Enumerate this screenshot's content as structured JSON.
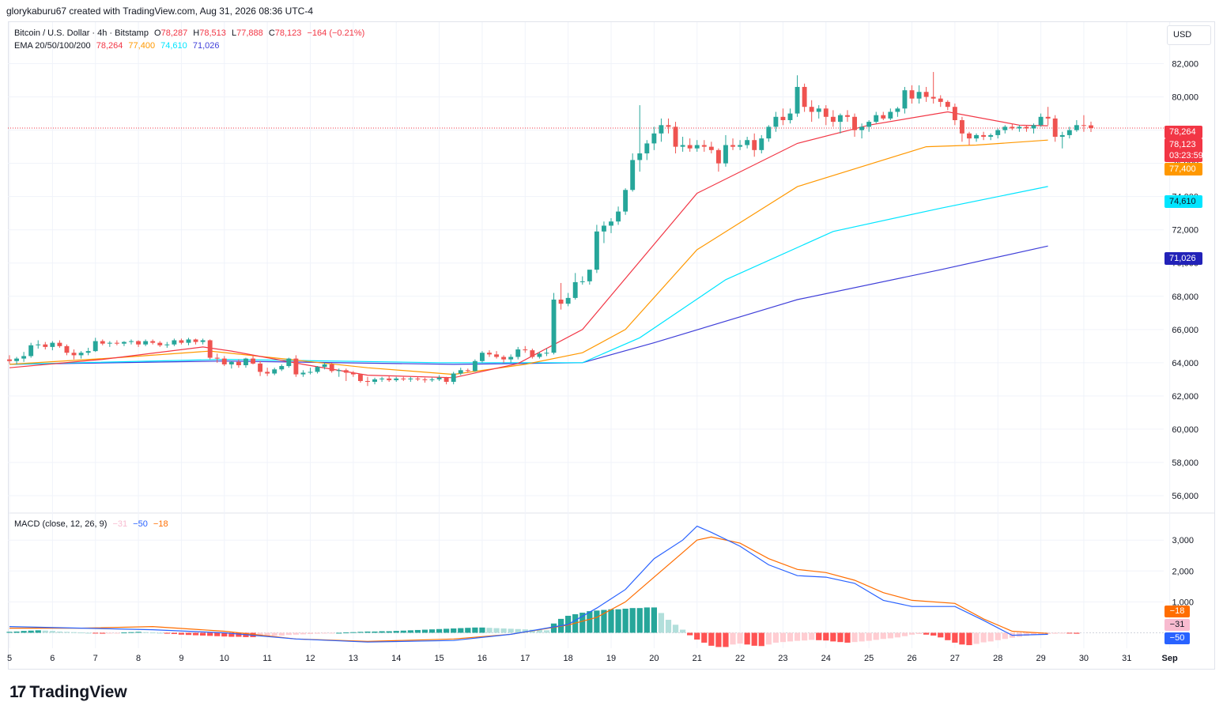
{
  "header": {
    "text": "glorykaburu67 created with TradingView.com, Aug 31, 2026 08:36 UTC-4"
  },
  "legend": {
    "symbol": "Bitcoin / U.S. Dollar · 4h · Bitstamp",
    "o_label": "O",
    "o": "78,287",
    "h_label": "H",
    "h": "78,513",
    "l_label": "L",
    "l": "77,888",
    "c_label": "C",
    "c": "78,123",
    "change": "−164 (−0.21%)",
    "ema_label": "EMA 20/50/100/200",
    "ema20": "78,264",
    "ema50": "77,400",
    "ema100": "74,610",
    "ema200": "71,026"
  },
  "macd_legend": {
    "label": "MACD (close, 12, 26, 9)",
    "hist": "−31",
    "macd": "−50",
    "signal": "−18"
  },
  "currency": "USD",
  "price_tags": {
    "ema20": "78,264",
    "last": "78,123",
    "countdown": "03:23:59",
    "ema50": "77,400",
    "ema100": "74,610",
    "ema200": "71,026"
  },
  "macd_tags": {
    "signal": "−18",
    "hist": "−31",
    "macd": "−50"
  },
  "logo": "TradingView",
  "colors": {
    "up": "#26a69a",
    "down": "#ef5350",
    "ema20": "#f23645",
    "ema50": "#ff9800",
    "ema100": "#00e5ff",
    "ema200": "#3f3fd9",
    "macd": "#2962ff",
    "signal": "#ff6d00"
  },
  "chart_data": {
    "type": "candlestick",
    "timeframe": "4h",
    "x_ticks": [
      "5",
      "6",
      "7",
      "8",
      "9",
      "10",
      "11",
      "12",
      "13",
      "14",
      "15",
      "16",
      "17",
      "18",
      "19",
      "20",
      "21",
      "22",
      "23",
      "24",
      "25",
      "26",
      "27",
      "28",
      "29",
      "30",
      "31",
      "Sep"
    ],
    "y_ticks": [
      "82,000",
      "80,000",
      "78,000",
      "76,000",
      "74,000",
      "72,000",
      "70,000",
      "68,000",
      "66,000",
      "64,000",
      "62,000",
      "60,000",
      "58,000",
      "56,000"
    ],
    "ylim": [
      55000,
      84500
    ],
    "ohlc": [
      [
        64200,
        64450,
        63950,
        64100
      ],
      [
        64100,
        64350,
        63900,
        64250
      ],
      [
        64250,
        64650,
        64050,
        64400
      ],
      [
        64400,
        65200,
        64300,
        65050
      ],
      [
        65050,
        65350,
        64850,
        65100
      ],
      [
        65100,
        65250,
        64800,
        64950
      ],
      [
        64950,
        65300,
        64750,
        65200
      ],
      [
        65200,
        65350,
        64900,
        65000
      ],
      [
        65000,
        65100,
        64450,
        64600
      ],
      [
        64600,
        64800,
        64200,
        64450
      ],
      [
        64450,
        64700,
        64250,
        64600
      ],
      [
        64600,
        64900,
        64450,
        64700
      ],
      [
        64700,
        65500,
        64650,
        65300
      ],
      [
        65300,
        65400,
        65050,
        65150
      ],
      [
        65150,
        65300,
        64950,
        65200
      ],
      [
        65200,
        65350,
        65050,
        65150
      ],
      [
        65150,
        65300,
        65000,
        65250
      ],
      [
        65250,
        65400,
        65100,
        65300
      ],
      [
        65300,
        65350,
        64950,
        65100
      ],
      [
        65100,
        65400,
        65000,
        65300
      ],
      [
        65300,
        65400,
        65100,
        65200
      ],
      [
        65200,
        65300,
        64950,
        65050
      ],
      [
        65050,
        65250,
        64900,
        65100
      ],
      [
        65100,
        65450,
        65000,
        65350
      ],
      [
        65350,
        65450,
        65100,
        65200
      ],
      [
        65200,
        65500,
        65050,
        65400
      ],
      [
        65400,
        65450,
        65100,
        65250
      ],
      [
        65250,
        65450,
        65100,
        65350
      ],
      [
        65350,
        65400,
        64200,
        64300
      ],
      [
        64300,
        64550,
        64000,
        64250
      ],
      [
        64250,
        64400,
        63800,
        63900
      ],
      [
        63900,
        64100,
        63650,
        64050
      ],
      [
        64050,
        64200,
        63700,
        63850
      ],
      [
        63850,
        64300,
        63700,
        64250
      ],
      [
        64250,
        64400,
        63900,
        63950
      ],
      [
        63950,
        64100,
        63200,
        63450
      ],
      [
        63450,
        63700,
        63200,
        63350
      ],
      [
        63350,
        63700,
        63250,
        63600
      ],
      [
        63600,
        63900,
        63500,
        63800
      ],
      [
        63800,
        64300,
        63700,
        64250
      ],
      [
        64250,
        64450,
        63150,
        63300
      ],
      [
        63300,
        63550,
        63150,
        63400
      ],
      [
        63400,
        63700,
        63300,
        63450
      ],
      [
        63450,
        63800,
        63350,
        63750
      ],
      [
        63750,
        64000,
        63600,
        63900
      ],
      [
        63900,
        64000,
        63400,
        63500
      ],
      [
        63500,
        63650,
        63150,
        63550
      ],
      [
        63550,
        63650,
        62900,
        63400
      ],
      [
        63400,
        63500,
        63150,
        63300
      ],
      [
        63300,
        63350,
        62800,
        62900
      ],
      [
        62900,
        63150,
        62600,
        62850
      ],
      [
        62850,
        63100,
        62700,
        63000
      ],
      [
        63000,
        63150,
        62850,
        63050
      ],
      [
        63050,
        63200,
        62850,
        62950
      ],
      [
        62950,
        63150,
        62850,
        63050
      ],
      [
        63050,
        63150,
        62900,
        63000
      ],
      [
        63000,
        63150,
        62850,
        63050
      ],
      [
        63050,
        63150,
        62900,
        63000
      ],
      [
        63000,
        63100,
        62800,
        62950
      ],
      [
        62950,
        63100,
        62850,
        63000
      ],
      [
        63000,
        63250,
        62900,
        63100
      ],
      [
        63100,
        63150,
        62700,
        62850
      ],
      [
        62850,
        63450,
        62700,
        63350
      ],
      [
        63350,
        63700,
        63250,
        63550
      ],
      [
        63550,
        63650,
        63400,
        63500
      ],
      [
        63500,
        64200,
        63450,
        64100
      ],
      [
        64100,
        64700,
        64000,
        64600
      ],
      [
        64600,
        64750,
        64350,
        64500
      ],
      [
        64500,
        64700,
        64250,
        64350
      ],
      [
        64350,
        64450,
        64000,
        64200
      ],
      [
        64200,
        64500,
        64000,
        64350
      ],
      [
        64350,
        64950,
        64200,
        64800
      ],
      [
        64800,
        65000,
        64600,
        64750
      ],
      [
        64750,
        64850,
        64250,
        64350
      ],
      [
        64350,
        64650,
        64250,
        64550
      ],
      [
        64550,
        64850,
        64400,
        64600
      ],
      [
        64600,
        68200,
        64500,
        67800
      ],
      [
        67800,
        68800,
        67200,
        67550
      ],
      [
        67550,
        68200,
        67400,
        67900
      ],
      [
        67900,
        69400,
        67800,
        68850
      ],
      [
        68850,
        69200,
        68700,
        68900
      ],
      [
        68900,
        69500,
        68700,
        69600
      ],
      [
        69600,
        72300,
        69400,
        71900
      ],
      [
        71900,
        72500,
        71200,
        72250
      ],
      [
        72250,
        72700,
        71800,
        72500
      ],
      [
        72500,
        73400,
        72300,
        73100
      ],
      [
        73100,
        74500,
        72900,
        74400
      ],
      [
        74400,
        76600,
        74300,
        76200
      ],
      [
        76200,
        79500,
        75500,
        76600
      ],
      [
        76600,
        77400,
        76200,
        77200
      ],
      [
        77200,
        78200,
        76800,
        77800
      ],
      [
        77800,
        78700,
        77300,
        78300
      ],
      [
        78300,
        78700,
        77800,
        78200
      ],
      [
        78200,
        78500,
        76600,
        77000
      ],
      [
        77000,
        77600,
        76700,
        77100
      ],
      [
        77100,
        77500,
        76700,
        76900
      ],
      [
        76900,
        77400,
        76700,
        77100
      ],
      [
        77100,
        77400,
        76700,
        77000
      ],
      [
        77000,
        77300,
        76600,
        76800
      ],
      [
        76800,
        76900,
        75500,
        76000
      ],
      [
        76000,
        77700,
        75800,
        77100
      ],
      [
        77100,
        77500,
        76800,
        77000
      ],
      [
        77000,
        77400,
        76800,
        77100
      ],
      [
        77100,
        77600,
        76900,
        77400
      ],
      [
        77400,
        77800,
        76400,
        76800
      ],
      [
        76800,
        77700,
        76600,
        77500
      ],
      [
        77500,
        78300,
        77300,
        78200
      ],
      [
        78200,
        79100,
        77900,
        78800
      ],
      [
        78800,
        79300,
        78300,
        78600
      ],
      [
        78600,
        79300,
        78400,
        79000
      ],
      [
        79000,
        81300,
        78800,
        80600
      ],
      [
        80600,
        80800,
        79100,
        79400
      ],
      [
        79400,
        79800,
        78500,
        79100
      ],
      [
        79100,
        79500,
        78700,
        79300
      ],
      [
        79300,
        79500,
        78300,
        78800
      ],
      [
        78800,
        79200,
        78200,
        78500
      ],
      [
        78500,
        79000,
        77800,
        78900
      ],
      [
        78900,
        79200,
        78500,
        78800
      ],
      [
        78800,
        79000,
        77600,
        78000
      ],
      [
        78000,
        78400,
        77500,
        78200
      ],
      [
        78200,
        78600,
        77900,
        78500
      ],
      [
        78500,
        79100,
        78400,
        78900
      ],
      [
        78900,
        79100,
        78600,
        78700
      ],
      [
        78700,
        79300,
        78600,
        79100
      ],
      [
        79100,
        79400,
        78800,
        79300
      ],
      [
        79300,
        80600,
        79000,
        80400
      ],
      [
        80400,
        80700,
        79600,
        79900
      ],
      [
        79900,
        80700,
        79600,
        80300
      ],
      [
        80300,
        80600,
        79700,
        80000
      ],
      [
        80000,
        81500,
        79600,
        79900
      ],
      [
        79900,
        80100,
        79400,
        79700
      ],
      [
        79700,
        79800,
        79200,
        79400
      ],
      [
        79400,
        79600,
        78300,
        78600
      ],
      [
        78600,
        78800,
        77300,
        77800
      ],
      [
        77800,
        77900,
        77100,
        77500
      ],
      [
        77500,
        77800,
        77300,
        77700
      ],
      [
        77700,
        77900,
        77400,
        77600
      ],
      [
        77600,
        77800,
        77400,
        77700
      ],
      [
        77700,
        78100,
        77500,
        78000
      ],
      [
        78000,
        78300,
        77800,
        78200
      ],
      [
        78200,
        78400,
        78000,
        78100
      ],
      [
        78100,
        78300,
        77900,
        78200
      ],
      [
        78200,
        78300,
        77900,
        78100
      ],
      [
        78100,
        78400,
        77800,
        78300
      ],
      [
        78300,
        79000,
        78200,
        78800
      ],
      [
        78800,
        79400,
        78300,
        78700
      ],
      [
        78700,
        78900,
        77300,
        77600
      ],
      [
        77600,
        77900,
        76900,
        77700
      ],
      [
        77700,
        78200,
        77500,
        78000
      ],
      [
        78000,
        78600,
        77900,
        78300
      ],
      [
        78300,
        78900,
        77900,
        78287
      ],
      [
        78287,
        78513,
        77888,
        78123
      ]
    ],
    "ema20": [
      [
        0,
        63700
      ],
      [
        13,
        64200
      ],
      [
        27,
        64950
      ],
      [
        31,
        64700
      ],
      [
        41,
        63900
      ],
      [
        50,
        63250
      ],
      [
        62,
        63100
      ],
      [
        71,
        63950
      ],
      [
        80,
        66000
      ],
      [
        96,
        74200
      ],
      [
        110,
        77200
      ],
      [
        120,
        78300
      ],
      [
        131,
        79100
      ],
      [
        141,
        78300
      ],
      [
        145,
        78264
      ]
    ],
    "ema50": [
      [
        0,
        63900
      ],
      [
        15,
        64300
      ],
      [
        28,
        64700
      ],
      [
        50,
        63700
      ],
      [
        62,
        63300
      ],
      [
        72,
        63900
      ],
      [
        80,
        64600
      ],
      [
        86,
        66000
      ],
      [
        96,
        70800
      ],
      [
        110,
        74600
      ],
      [
        128,
        77000
      ],
      [
        135,
        77100
      ],
      [
        145,
        77400
      ]
    ],
    "ema100": [
      [
        0,
        63900
      ],
      [
        30,
        64200
      ],
      [
        60,
        64000
      ],
      [
        80,
        64000
      ],
      [
        88,
        65500
      ],
      [
        100,
        69000
      ],
      [
        115,
        71900
      ],
      [
        130,
        73300
      ],
      [
        145,
        74610
      ]
    ],
    "ema200": [
      [
        0,
        63900
      ],
      [
        30,
        64100
      ],
      [
        62,
        63900
      ],
      [
        80,
        64000
      ],
      [
        90,
        65200
      ],
      [
        110,
        67800
      ],
      [
        130,
        69600
      ],
      [
        145,
        71026
      ]
    ],
    "macd_ylim": [
      -500,
      3850
    ],
    "macd_ticks": [
      "3,000",
      "2,000",
      "1,000"
    ],
    "macd_line": [
      [
        0,
        200
      ],
      [
        10,
        150
      ],
      [
        20,
        100
      ],
      [
        30,
        0
      ],
      [
        40,
        -200
      ],
      [
        50,
        -300
      ],
      [
        62,
        -250
      ],
      [
        70,
        -50
      ],
      [
        78,
        270
      ],
      [
        82,
        800
      ],
      [
        86,
        1400
      ],
      [
        90,
        2400
      ],
      [
        94,
        3000
      ],
      [
        96,
        3450
      ],
      [
        98,
        3250
      ],
      [
        102,
        2800
      ],
      [
        106,
        2200
      ],
      [
        110,
        1850
      ],
      [
        114,
        1800
      ],
      [
        118,
        1600
      ],
      [
        122,
        1050
      ],
      [
        126,
        850
      ],
      [
        132,
        850
      ],
      [
        136,
        400
      ],
      [
        140,
        -80
      ],
      [
        145,
        -50
      ]
    ],
    "signal_line": [
      [
        0,
        150
      ],
      [
        10,
        150
      ],
      [
        20,
        200
      ],
      [
        30,
        50
      ],
      [
        40,
        -200
      ],
      [
        50,
        -280
      ],
      [
        62,
        -200
      ],
      [
        70,
        -50
      ],
      [
        78,
        250
      ],
      [
        82,
        500
      ],
      [
        86,
        1000
      ],
      [
        90,
        1800
      ],
      [
        94,
        2600
      ],
      [
        96,
        3000
      ],
      [
        98,
        3100
      ],
      [
        102,
        2900
      ],
      [
        106,
        2400
      ],
      [
        110,
        2050
      ],
      [
        114,
        1950
      ],
      [
        118,
        1700
      ],
      [
        122,
        1300
      ],
      [
        126,
        1050
      ],
      [
        132,
        950
      ],
      [
        136,
        450
      ],
      [
        140,
        50
      ],
      [
        145,
        -18
      ]
    ],
    "histogram": [
      30,
      40,
      60,
      70,
      80,
      70,
      60,
      40,
      30,
      20,
      10,
      0,
      -20,
      -30,
      -20,
      -10,
      10,
      20,
      30,
      20,
      10,
      0,
      -30,
      -40,
      -60,
      -70,
      -80,
      -90,
      -100,
      -110,
      -120,
      -130,
      -130,
      -140,
      -140,
      -120,
      -110,
      -100,
      -90,
      -70,
      -60,
      -50,
      -40,
      -30,
      -20,
      -10,
      0,
      10,
      20,
      30,
      40,
      40,
      50,
      50,
      60,
      70,
      80,
      90,
      100,
      110,
      120,
      130,
      140,
      150,
      160,
      170,
      170,
      160,
      150,
      140,
      130,
      120,
      110,
      100,
      90,
      80,
      300,
      450,
      550,
      600,
      650,
      700,
      720,
      740,
      760,
      760,
      780,
      800,
      800,
      820,
      820,
      640,
      420,
      260,
      100,
      -80,
      -220,
      -320,
      -420,
      -460,
      -460,
      -380,
      -350,
      -380,
      -420,
      -430,
      -380,
      -320,
      -300,
      -280,
      -260,
      -250,
      -230,
      -240,
      -250,
      -280,
      -300,
      -320,
      -300,
      -280,
      -260,
      -230,
      -200,
      -180,
      -150,
      -110,
      -60,
      -40,
      -60,
      -90,
      -150,
      -240,
      -320,
      -380,
      -400,
      -360,
      -310,
      -280,
      -240,
      -200,
      -160,
      -130,
      -100,
      -70,
      -50,
      -40,
      -30,
      -20,
      -25,
      -31
    ]
  }
}
